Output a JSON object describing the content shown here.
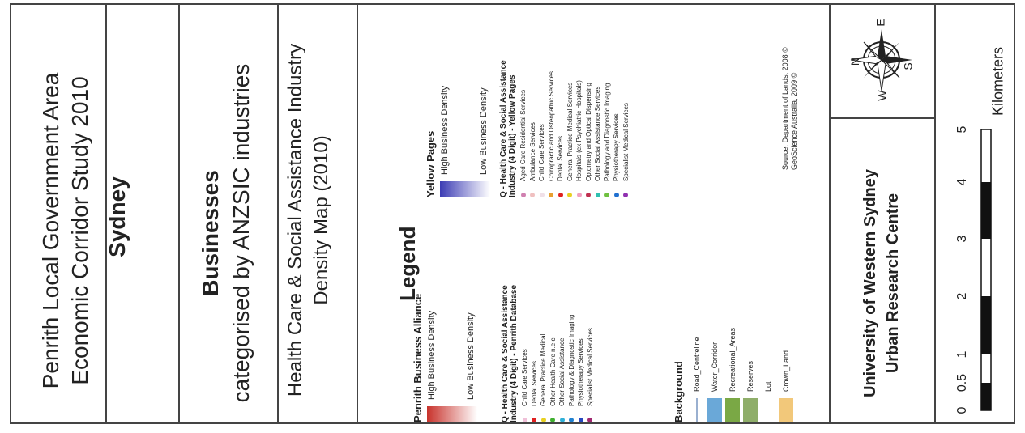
{
  "title": {
    "line1": "Penrith Local Government Area",
    "line2": "Economic Corridor Study 2010"
  },
  "region": "Sydney",
  "subject": {
    "heading": "Businesses",
    "subheading": "categorised by ANZSIC industries"
  },
  "map_title": {
    "line1": "Health Care & Social Assistance Industry",
    "line2": "Density Map (2010)"
  },
  "legend": {
    "heading": "Legend",
    "penrith": {
      "title": "Penrith Business Alliance",
      "high": "High Business Density",
      "low": "Low Business Density",
      "ramp_color": "#c8322b"
    },
    "yellow_pages": {
      "title": "Yellow Pages",
      "high": "High Business Density",
      "low": "Low Business Density",
      "ramp_color": "#3c3cb4"
    },
    "q_penrith": {
      "title_line1": "Q - Health Care & Social Assistance",
      "title_line2": "Industry (4 Digit) - Penrith Database",
      "items": [
        {
          "label": "Child Care Services",
          "color": "#f0c0d8"
        },
        {
          "label": "Dental Services",
          "color": "#e02020"
        },
        {
          "label": "General Practice Medical",
          "color": "#e8d020"
        },
        {
          "label": "Other Health Care n.e.c.",
          "color": "#40b030"
        },
        {
          "label": "Other Social Assistance",
          "color": "#30b0d8"
        },
        {
          "label": "Pathology & Diagnostic Imaging",
          "color": "#2080d0"
        },
        {
          "label": "Physiotherapy Services",
          "color": "#2848c0"
        },
        {
          "label": "Specialist Medical Services",
          "color": "#a02870"
        }
      ]
    },
    "q_yellow": {
      "title_line1": "Q - Health Care & Social Assistance",
      "title_line2": "Industry (4 Digit) - Yellow Pages",
      "items": [
        {
          "label": "Aged Care Residential Services",
          "color": "#d080b0"
        },
        {
          "label": "Ambulance Services",
          "color": "#f0c0c0"
        },
        {
          "label": "Child Care Services",
          "color": "#f0e0e8"
        },
        {
          "label": "Chiropractic and Osteopathic Services",
          "color": "#e8a030"
        },
        {
          "label": "Dental Services",
          "color": "#e02020"
        },
        {
          "label": "General Practice Medical Services",
          "color": "#e8d020"
        },
        {
          "label": "Hospitals (ex Psychiatric Hospitals)",
          "color": "#f0a0c0"
        },
        {
          "label": "Optometry and Optical Dispensing",
          "color": "#c03050"
        },
        {
          "label": "Other Social Assistance Services",
          "color": "#30c0b0"
        },
        {
          "label": "Pathology and Diagnostic Imaging",
          "color": "#70c040"
        },
        {
          "label": "Physiotherapy Services",
          "color": "#2070d0"
        },
        {
          "label": "Specialist Medical Services",
          "color": "#9030b0"
        }
      ]
    },
    "background": {
      "title": "Background",
      "items": [
        {
          "label": "Road_Centreline",
          "kind": "line",
          "color": "#9ab0d0"
        },
        {
          "label": "Water_Corridor",
          "kind": "box",
          "color": "#6aa8d8"
        },
        {
          "label": "Recreational_Areas",
          "kind": "box",
          "color": "#7aa845"
        },
        {
          "label": "Reserves",
          "kind": "box",
          "color": "#8fae6a"
        },
        {
          "label": "Lot",
          "kind": "empty",
          "color": "#ffffff"
        },
        {
          "label": "Crown_Land",
          "kind": "box",
          "color": "#f2c87a"
        }
      ]
    },
    "source": {
      "line1": "Source: Department of Lands, 2008 ©",
      "line2": "GeoScience Australia, 2009 ©"
    }
  },
  "compass": {
    "n": "N",
    "e": "E",
    "s": "S",
    "w": "W"
  },
  "org": {
    "line1": "University of Western Sydney",
    "line2": "Urban Research Centre"
  },
  "scale": {
    "unit": "Kilometers",
    "ticks": [
      "0",
      "0.5",
      "1",
      "2",
      "3",
      "4",
      "5"
    ]
  }
}
